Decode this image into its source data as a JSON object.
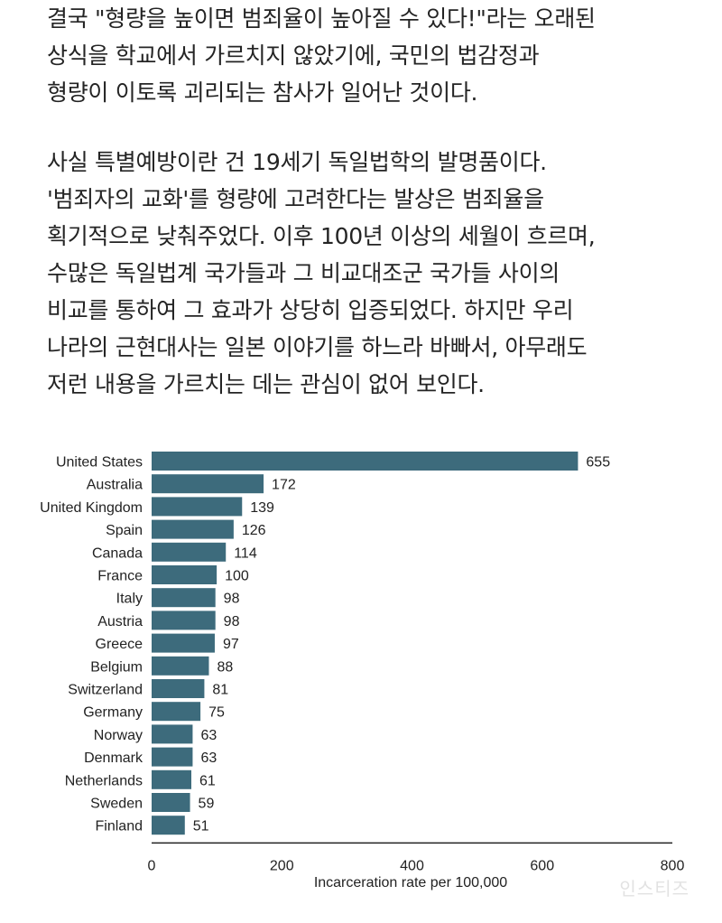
{
  "article": {
    "paragraphs": [
      {
        "lines": [
          "결국 \"형량을 높이면 범죄율이 높아질 수 있다!\"라는 오래된",
          "상식을 학교에서 가르치지 않았기에, 국민의 법감정과",
          "형량이 이토록 괴리되는 참사가 일어난 것이다."
        ]
      },
      {
        "lines": [
          "사실 특별예방이란 건 19세기 독일법학의 발명품이다.",
          "'범죄자의 교화'를 형량에 고려한다는 발상은 범죄율을",
          "획기적으로 낮춰주었다. 이후 100년 이상의 세월이 흐르며,",
          "수많은 독일법계 국가들과 그 비교대조군 국가들 사이의",
          "비교를 통하여 그 효과가 상당히 입증되었다. 하지만 우리",
          "나라의 근현대사는 일본 이야기를 하느라 바빠서, 아무래도",
          "저런 내용을 가르치는 데는 관심이 없어 보인다."
        ]
      }
    ]
  },
  "chart_data": {
    "type": "bar",
    "orientation": "horizontal",
    "categories": [
      "United States",
      "Australia",
      "United Kingdom",
      "Spain",
      "Canada",
      "France",
      "Italy",
      "Austria",
      "Greece",
      "Belgium",
      "Switzerland",
      "Germany",
      "Norway",
      "Denmark",
      "Netherlands",
      "Sweden",
      "Finland"
    ],
    "values": [
      655,
      172,
      139,
      126,
      114,
      100,
      98,
      98,
      97,
      88,
      81,
      75,
      63,
      63,
      61,
      59,
      51
    ],
    "data_labels": [
      "655",
      "172",
      "139",
      "126",
      "114",
      "100",
      "98",
      "98",
      "97",
      "88",
      "81",
      "75",
      "63",
      "63",
      "61",
      "59",
      "51"
    ],
    "xlabel": "Incarceration rate per 100,000",
    "xlim": [
      0,
      800
    ],
    "xticks": [
      0,
      200,
      400,
      600,
      800
    ],
    "xtick_labels": [
      "0",
      "200",
      "400",
      "600",
      "800"
    ],
    "grid": false,
    "legend": "none",
    "bar_color": "#3d6b7c"
  },
  "watermark": {
    "text": "인스티즈"
  }
}
